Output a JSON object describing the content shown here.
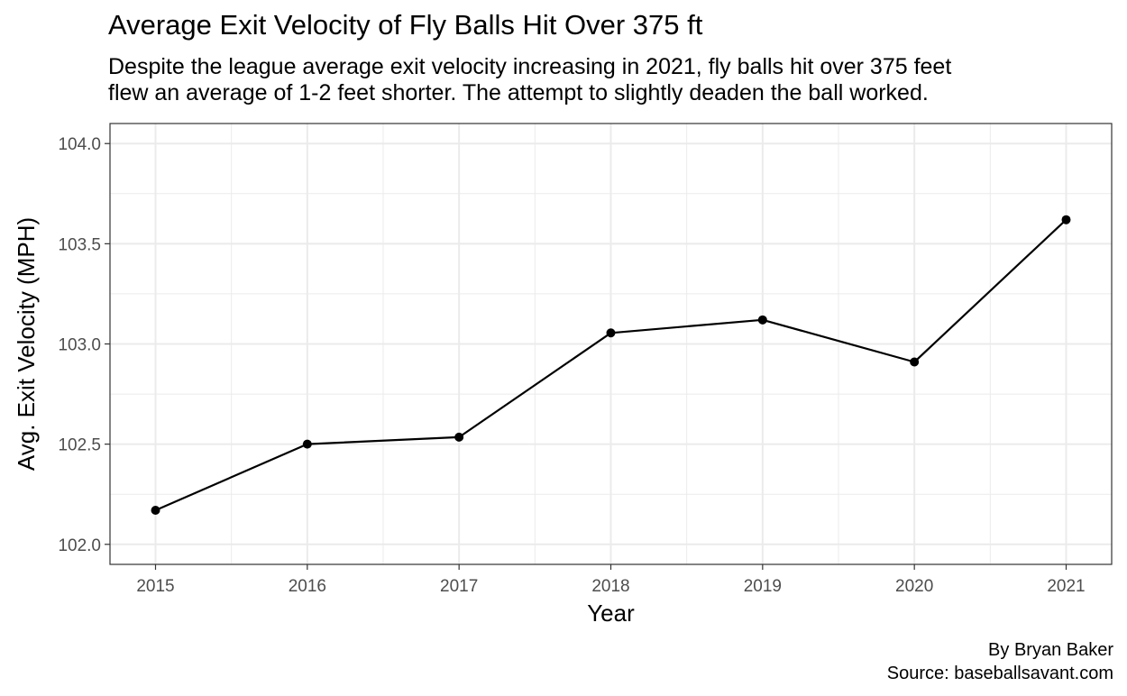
{
  "chart_data": {
    "type": "line",
    "title": "Average Exit Velocity of Fly Balls Hit Over 375 ft",
    "subtitle": [
      "Despite the league average exit velocity increasing in 2021, fly balls hit over 375 feet",
      "flew an average of 1-2 feet shorter. The attempt to slightly deaden the ball worked."
    ],
    "xlabel": "Year",
    "ylabel": "Avg. Exit Velocity (MPH)",
    "x": [
      2015,
      2016,
      2017,
      2018,
      2019,
      2020,
      2021
    ],
    "y": [
      102.17,
      102.5,
      102.535,
      103.055,
      103.12,
      102.91,
      103.62
    ],
    "xticks": [
      "2015",
      "2016",
      "2017",
      "2018",
      "2019",
      "2020",
      "2021"
    ],
    "yticks": [
      "102.0",
      "102.5",
      "103.0",
      "103.5",
      "104.0"
    ],
    "ylim": [
      101.9,
      104.1
    ],
    "xlim": [
      2014.7,
      2021.3
    ],
    "grid": true,
    "legend": "none",
    "line_color": "#000000",
    "grid_color": "#ebebeb",
    "caption": [
      "By Bryan Baker",
      "Source: baseballsavant.com"
    ]
  }
}
